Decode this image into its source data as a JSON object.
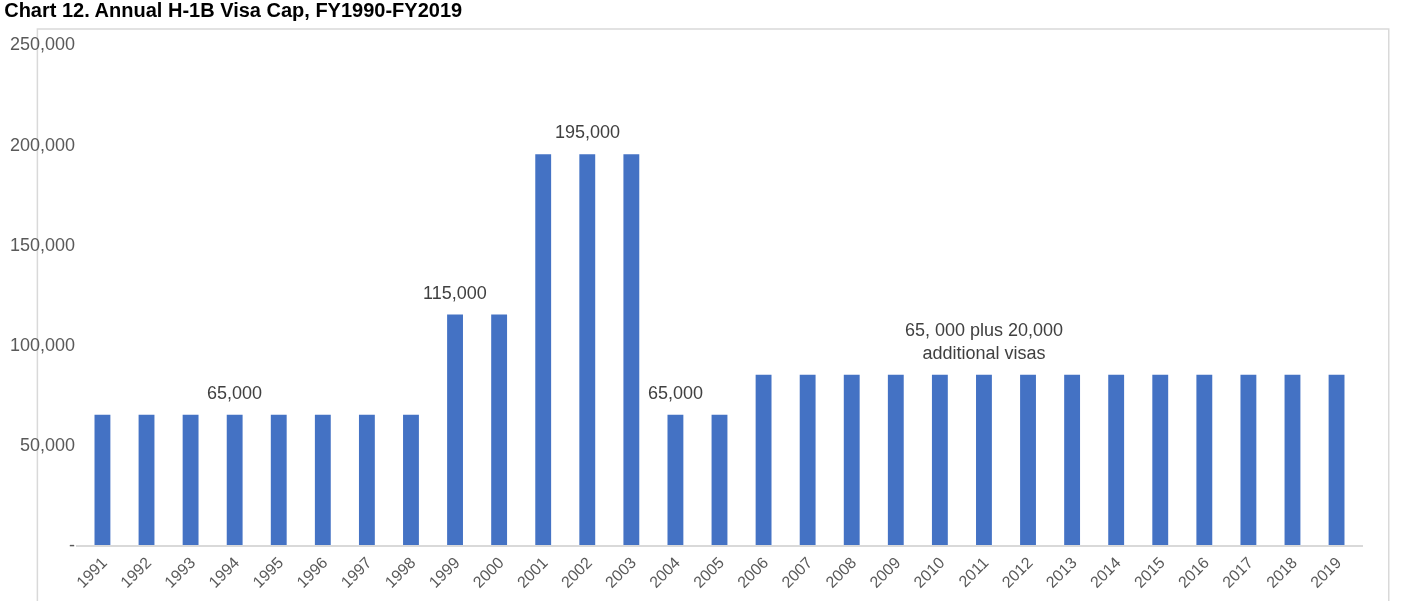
{
  "chart_data": {
    "type": "bar",
    "title": "Chart 12. Annual H-1B Visa Cap, FY1990-FY2019",
    "categories": [
      "1991",
      "1992",
      "1993",
      "1994",
      "1995",
      "1996",
      "1997",
      "1998",
      "1999",
      "2000",
      "2001",
      "2002",
      "2003",
      "2004",
      "2005",
      "2006",
      "2007",
      "2008",
      "2009",
      "2010",
      "2011",
      "2012",
      "2013",
      "2014",
      "2015",
      "2016",
      "2017",
      "2018",
      "2019"
    ],
    "values": [
      65000,
      65000,
      65000,
      65000,
      65000,
      65000,
      65000,
      65000,
      115000,
      115000,
      195000,
      195000,
      195000,
      65000,
      65000,
      85000,
      85000,
      85000,
      85000,
      85000,
      85000,
      85000,
      85000,
      85000,
      85000,
      85000,
      85000,
      85000,
      85000
    ],
    "color": "#4472c4",
    "ylim": [
      0,
      250000
    ],
    "yticks": [
      {
        "value": 0,
        "label": "-"
      },
      {
        "value": 50000,
        "label": "50,000"
      },
      {
        "value": 100000,
        "label": "100,000"
      },
      {
        "value": 150000,
        "label": "150,000"
      },
      {
        "value": 200000,
        "label": "200,000"
      },
      {
        "value": 250000,
        "label": "250,000"
      }
    ],
    "grid": false,
    "annotations": [
      {
        "text": "65,000",
        "x": "1994",
        "y": 65000
      },
      {
        "text": "115,000",
        "x": "1999",
        "y": 115000
      },
      {
        "text": "195,000",
        "x": "2002",
        "y": 195000
      },
      {
        "text": "65,000",
        "x": "2004",
        "y": 65000
      },
      {
        "text": "65, 000 plus 20,000\nadditional visas",
        "x": "2011",
        "y": 85000
      }
    ]
  }
}
